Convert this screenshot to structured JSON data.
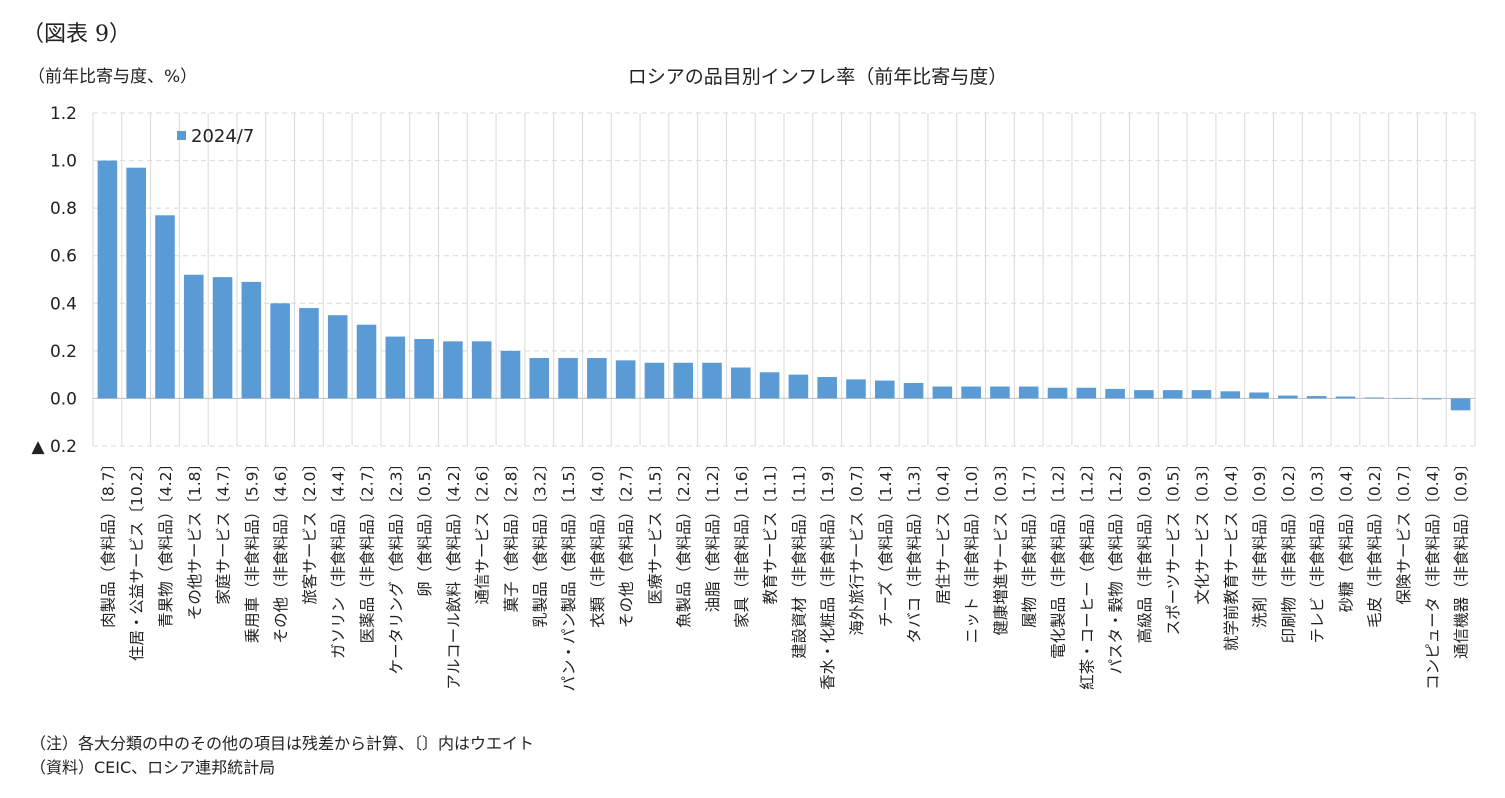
{
  "figure_label": "（図表 9）",
  "unit_label": "（前年比寄与度、%）",
  "notes": [
    "（注）各大分類の中のその他の項目は残差から計算、〔〕内はウエイト",
    "（資料）CEIC、ロシア連邦統計局"
  ],
  "chart_data": {
    "type": "bar",
    "title": "ロシアの品目別インフレ率（前年比寄与度）",
    "ylabel": "（前年比寄与度、%）",
    "ylim": [
      -0.2,
      1.2
    ],
    "yticks": [
      1.2,
      1.0,
      0.8,
      0.6,
      0.4,
      0.2,
      0.0,
      -0.2
    ],
    "ytick_labels": [
      "1.2",
      "1.0",
      "0.8",
      "0.6",
      "0.4",
      "0.2",
      "0.0",
      "▲ 0.2"
    ],
    "grid": true,
    "legend_position": "top-left",
    "bar_color": "#5b9bd5",
    "categories": [
      "肉製品（食料品）〔8.7〕",
      "住居・公益サービス〔10.2〕",
      "青果物（食料品）〔4.2〕",
      "その他サービス〔1.8〕",
      "家庭サービス〔4.7〕",
      "乗用車（非食料品）〔5.9〕",
      "その他（非食料品）〔4.6〕",
      "旅客サービス〔2.0〕",
      "ガソリン（非食料品）〔4.4〕",
      "医薬品（非食料品）〔2.7〕",
      "ケータリング（食料品）〔2.3〕",
      "卵（食料品）〔0.5〕",
      "アルコール飲料（食料品）〔4.2〕",
      "通信サービス〔2.6〕",
      "菓子（食料品）〔2.8〕",
      "乳製品（食料品）〔3.2〕",
      "パン・パン製品（食料品）〔1.5〕",
      "衣類（非食料品）〔4.0〕",
      "その他（食料品）〔2.7〕",
      "医療サービス〔1.5〕",
      "魚製品（食料品）〔2.2〕",
      "油脂（食料品）〔1.2〕",
      "家具（非食料品）〔1.6〕",
      "教育サービス〔1.1〕",
      "建設資材（非食料品）〔1.1〕",
      "香水・化粧品（非食料品）〔1.9〕",
      "海外旅行サービス〔0.7〕",
      "チーズ（食料品）〔1.4〕",
      "タバコ（非食料品）〔1.3〕",
      "居住サービス〔0.4〕",
      "ニット（非食料品）〔1.0〕",
      "健康増進サービス〔0.3〕",
      "履物（非食料品）〔1.7〕",
      "電化製品（非食料品）〔1.2〕",
      "紅茶・コーヒー（食料品）〔1.2〕",
      "パスタ・穀物（食料品）〔1.2〕",
      "高級品（非食料品）〔0.9〕",
      "スポーツサービス〔0.5〕",
      "文化サービス〔0.3〕",
      "就学前教育サービス〔0.4〕",
      "洗剤（非食料品）〔0.9〕",
      "印刷物（非食料品）〔0.2〕",
      "テレビ（非食料品）〔0.3〕",
      "砂糖（食料品）〔0.4〕",
      "毛皮（非食料品）〔0.2〕",
      "保険サービス〔0.7〕",
      "コンピュータ（非食料品）〔0.4〕",
      "通信機器（非食料品）〔0.9〕"
    ],
    "series": [
      {
        "name": "2024/7",
        "values": [
          1.0,
          0.97,
          0.77,
          0.52,
          0.51,
          0.49,
          0.4,
          0.38,
          0.35,
          0.31,
          0.26,
          0.25,
          0.24,
          0.24,
          0.2,
          0.17,
          0.17,
          0.17,
          0.16,
          0.15,
          0.15,
          0.15,
          0.13,
          0.11,
          0.1,
          0.09,
          0.08,
          0.075,
          0.065,
          0.05,
          0.05,
          0.05,
          0.05,
          0.045,
          0.045,
          0.04,
          0.035,
          0.035,
          0.035,
          0.03,
          0.025,
          0.012,
          0.01,
          0.008,
          0.004,
          0.002,
          -0.004,
          -0.05
        ]
      }
    ]
  }
}
